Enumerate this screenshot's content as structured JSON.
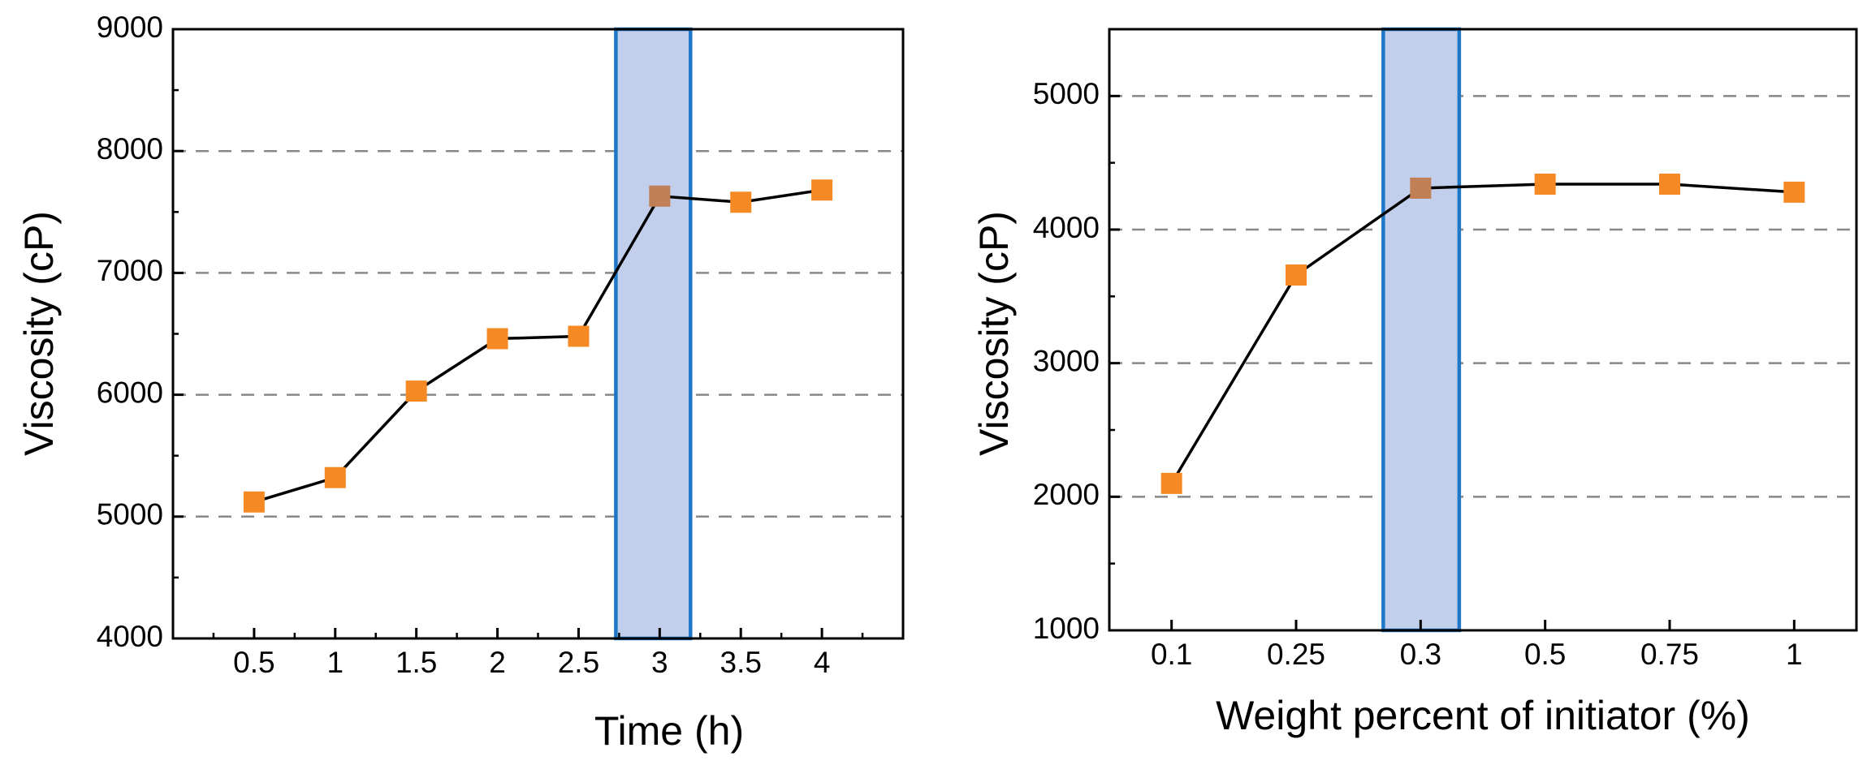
{
  "chart_data": [
    {
      "type": "line",
      "title": "",
      "xlabel": "Time (h)",
      "ylabel": "Viscosity (cP)",
      "categories": [
        "0.5",
        "1",
        "1.5",
        "2",
        "2.5",
        "3",
        "3.5",
        "4"
      ],
      "x": [
        0.5,
        1,
        1.5,
        2,
        2.5,
        3,
        3.5,
        4
      ],
      "values": [
        5120,
        5320,
        6030,
        6460,
        6480,
        7630,
        7580,
        7680
      ],
      "xlim": [
        0,
        4.5
      ],
      "ylim": [
        4000,
        9000
      ],
      "yticks": [
        4000,
        5000,
        6000,
        7000,
        8000,
        9000
      ],
      "grid_y": [
        5000,
        6000,
        7000,
        8000
      ],
      "highlight": {
        "x_from": 2.73,
        "x_to": 3.19,
        "point_index": 5
      },
      "legend": "none"
    },
    {
      "type": "line",
      "title": "",
      "xlabel": "Weight percent of initiator (%)",
      "ylabel": "Viscosity (cP)",
      "categories": [
        "0.1",
        "0.25",
        "0.3",
        "0.5",
        "0.75",
        "1"
      ],
      "values": [
        2100,
        3660,
        4310,
        4340,
        4340,
        4280
      ],
      "ylim": [
        1000,
        5500
      ],
      "yticks": [
        1000,
        2000,
        3000,
        4000,
        5000
      ],
      "grid_y": [
        2000,
        3000,
        4000,
        5000
      ],
      "highlight": {
        "index_from": 1.7,
        "index_to": 2.31,
        "point_index": 2
      },
      "legend": "none"
    }
  ],
  "colors": {
    "marker": "#f58a25",
    "marker_highlight": "#c07f54",
    "highlight_fill": "#c2cfec",
    "highlight_stroke": "#1f77c8",
    "grid": "#888888",
    "line": "#000000"
  }
}
